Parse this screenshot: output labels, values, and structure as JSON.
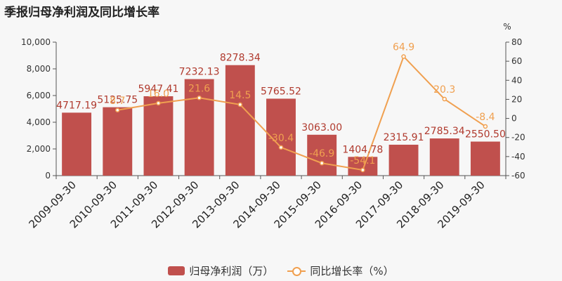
{
  "title": "季报归母净利润及同比增长率",
  "chart_data": {
    "type": "bar",
    "categories": [
      "2009-09-30",
      "2010-09-30",
      "2011-09-30",
      "2012-09-30",
      "2013-09-30",
      "2014-09-30",
      "2015-09-30",
      "2016-09-30",
      "2017-09-30",
      "2018-09-30",
      "2019-09-30"
    ],
    "series": [
      {
        "name": "归母净利润（万）",
        "type": "bar",
        "axis": "left",
        "color": "#c0504d",
        "values": [
          4717.19,
          5125.75,
          5947.41,
          7232.13,
          8278.34,
          5765.52,
          3063.0,
          1404.78,
          2315.91,
          2785.34,
          2550.5
        ],
        "labels": [
          "4717.19",
          "5125.75",
          "5947.41",
          "7232.13",
          "8278.34",
          "5765.52",
          "3063.00",
          "1404.78",
          "2315.91",
          "2785.34",
          "2550.50"
        ]
      },
      {
        "name": "同比增长率（%）",
        "type": "line",
        "axis": "right",
        "color": "#f0a050",
        "values": [
          null,
          8.7,
          16.0,
          21.6,
          14.5,
          -30.4,
          -46.9,
          -54.1,
          64.9,
          20.3,
          -8.4
        ],
        "labels": [
          "",
          "8.7",
          "16.0",
          "21.6",
          "14.5",
          "-30.4",
          "-46.9",
          "-54.1",
          "64.9",
          "20.3",
          "-8.4"
        ]
      }
    ],
    "y_left": {
      "ylim": [
        0,
        10000
      ],
      "ticks": [
        0,
        2000,
        4000,
        6000,
        8000,
        10000
      ],
      "tick_labels": [
        "0",
        "2,000",
        "4,000",
        "6,000",
        "8,000",
        "10,000"
      ]
    },
    "y_right": {
      "ylim": [
        -60,
        80
      ],
      "ticks": [
        -60,
        -40,
        -20,
        0,
        20,
        40,
        60,
        80
      ],
      "tick_labels": [
        "-60",
        "-40",
        "-20",
        "0",
        "20",
        "40",
        "60",
        "80"
      ],
      "unit": "%"
    },
    "grid": false,
    "legend_position": "bottom"
  }
}
